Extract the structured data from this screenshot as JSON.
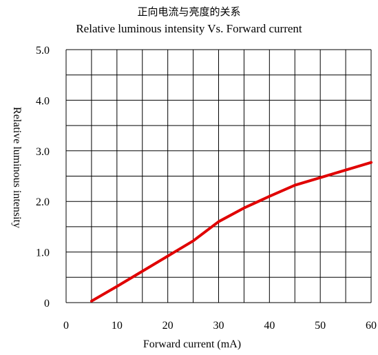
{
  "chart_data": {
    "type": "line",
    "title": "正向电流与亮度的关系",
    "subtitle": "Relative luminous intensity Vs. Forward current",
    "xlabel": "Forward current (mA)",
    "ylabel": "Relative luminous intensity",
    "xlim": [
      0,
      60
    ],
    "ylim": [
      0,
      5
    ],
    "x_ticks": [
      "0",
      "10",
      "20",
      "30",
      "40",
      "50",
      "60"
    ],
    "y_ticks": [
      "0",
      "1.0",
      "2.0",
      "3.0",
      "4.0",
      "5.0"
    ],
    "grid": true,
    "x_minor_step": 5,
    "y_minor_step": 0.5,
    "series": [
      {
        "color": "#e00000",
        "x": [
          5,
          10,
          15,
          20,
          25,
          30,
          35,
          40,
          45,
          50,
          55,
          60
        ],
        "y": [
          0.03,
          0.32,
          0.62,
          0.92,
          1.22,
          1.6,
          1.87,
          2.1,
          2.32,
          2.47,
          2.62,
          2.77
        ]
      }
    ]
  }
}
